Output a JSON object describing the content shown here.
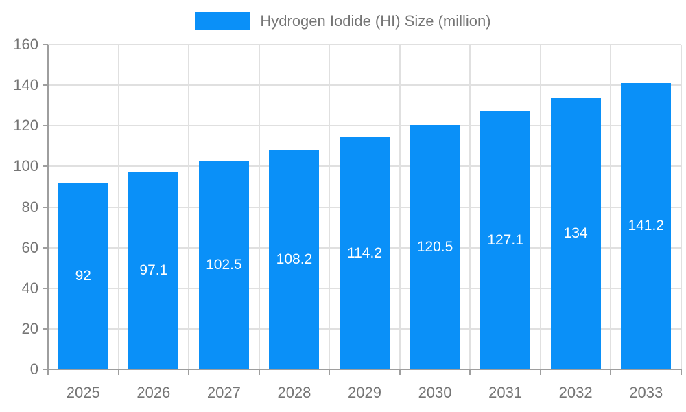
{
  "legend": {
    "label": "Hydrogen Iodide (HI) Size (million)"
  },
  "chart_data": {
    "type": "bar",
    "title": "",
    "categories": [
      "2025",
      "2026",
      "2027",
      "2028",
      "2029",
      "2030",
      "2031",
      "2032",
      "2033"
    ],
    "values": [
      92,
      97.1,
      102.5,
      108.2,
      114.2,
      120.5,
      127.1,
      134,
      141.2
    ],
    "bar_labels": [
      "92",
      "97.1",
      "102.5",
      "108.2",
      "114.2",
      "120.5",
      "127.1",
      "134",
      "141.2"
    ],
    "series_name": "Hydrogen Iodide (HI) Size (million)",
    "xlabel": "",
    "ylabel": "",
    "ylim": [
      0,
      160
    ],
    "yticks": [
      0,
      20,
      40,
      60,
      80,
      100,
      120,
      140,
      160
    ],
    "grid": true,
    "legend_position": "top",
    "bar_labels_position": "center"
  },
  "colors": {
    "bar": "#0a90f8",
    "bar_label": "#ffffff",
    "grid": "#e0e0e0",
    "axis": "#9e9e9e",
    "text": "#757575",
    "background": "#ffffff"
  }
}
